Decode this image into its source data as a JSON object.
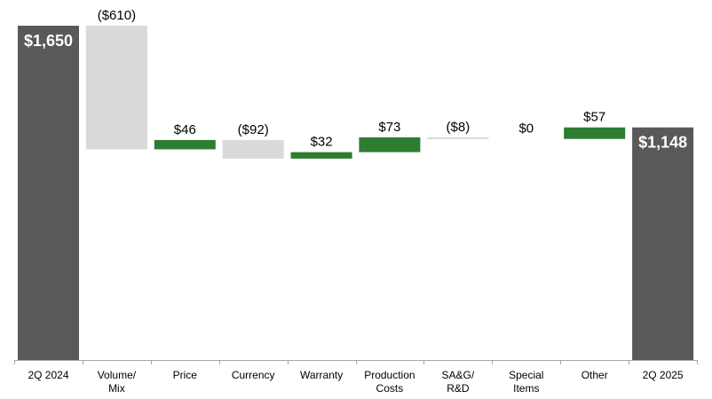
{
  "chart_data": {
    "type": "bar",
    "subtype": "waterfall",
    "title": "",
    "xlabel": "",
    "ylabel": "",
    "ylim": [
      0,
      1650
    ],
    "grid": false,
    "legend": "none",
    "categories": [
      [
        "2Q 2024"
      ],
      [
        "Volume/",
        "Mix"
      ],
      [
        "Price"
      ],
      [
        "Currency"
      ],
      [
        "Warranty"
      ],
      [
        "Production",
        "Costs"
      ],
      [
        "SA&G/",
        "R&D"
      ],
      [
        "Special",
        "Items"
      ],
      [
        "Other"
      ],
      [
        "2Q 2025"
      ]
    ],
    "values": [
      1650,
      -610,
      46,
      -92,
      32,
      73,
      -8,
      0,
      57,
      1148
    ],
    "kinds": [
      "total",
      "delta",
      "delta",
      "delta",
      "delta",
      "delta",
      "delta",
      "delta",
      "delta",
      "total"
    ],
    "data_labels": [
      "$1,650",
      "($610)",
      "$46",
      "($92)",
      "$32",
      "$73",
      "($8)",
      "$0",
      "$57",
      "$1,148"
    ],
    "colors": {
      "total": "#595959",
      "increase": "#2e7d32",
      "decrease": "#d9d9d9",
      "axis": "#a6a6a6"
    }
  }
}
